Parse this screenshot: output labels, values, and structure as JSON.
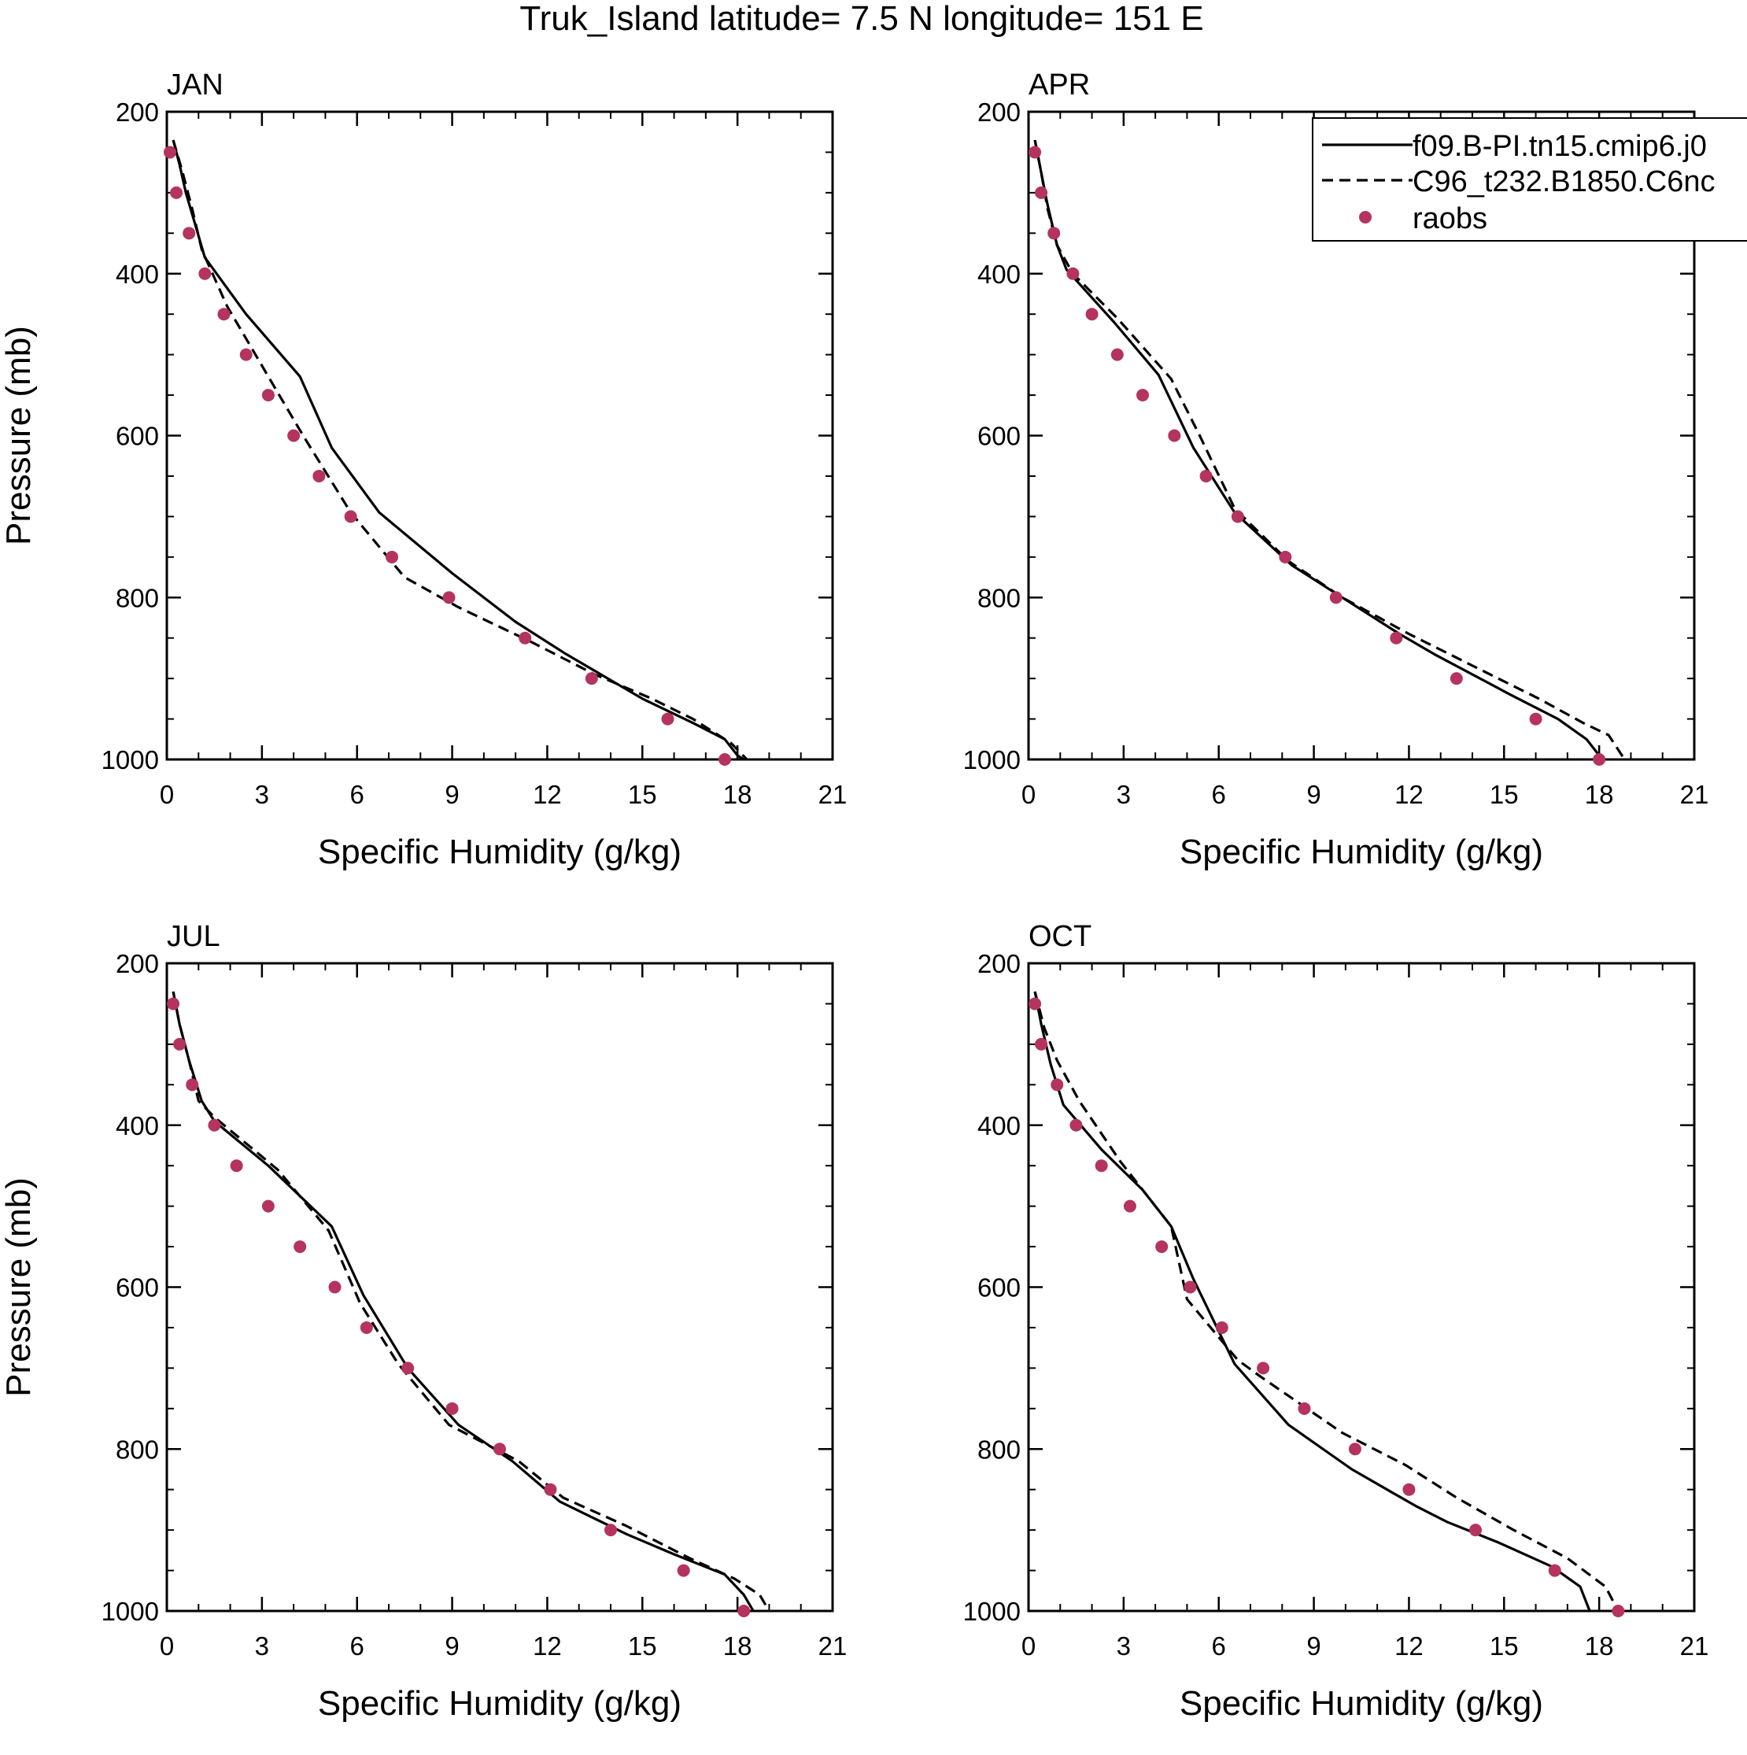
{
  "figure": {
    "title": "Truk_Island  latitude= 7.5 N longitude= 151 E",
    "obs_color": "#b5335f",
    "line_color": "#000000"
  },
  "legend": {
    "entries": [
      {
        "label": "f09.B-PI.tn15.cmip6.j0",
        "style": "solid"
      },
      {
        "label": "C96_t232.B1850.C6nc",
        "style": "dashed"
      },
      {
        "label": "raobs",
        "style": "marker"
      }
    ]
  },
  "chart_data": [
    {
      "type": "line",
      "title": "JAN",
      "xlabel": "Specific Humidity (g/kg)",
      "ylabel": "Pressure (mb)",
      "xlim": [
        0,
        21
      ],
      "ylim": [
        1000,
        200
      ],
      "xticks": [
        0,
        3,
        6,
        9,
        12,
        15,
        18,
        21
      ],
      "yticks": [
        200,
        400,
        600,
        800,
        1000
      ],
      "series": [
        {
          "name": "f09.B-PI.tn15.cmip6.j0",
          "style": "solid",
          "points": [
            [
              0.2,
              235
            ],
            [
              0.4,
              265
            ],
            [
              0.6,
              300
            ],
            [
              0.9,
              340
            ],
            [
              1.2,
              380
            ],
            [
              2.5,
              450
            ],
            [
              4.2,
              527
            ],
            [
              5.2,
              615
            ],
            [
              6.7,
              695
            ],
            [
              9.0,
              770
            ],
            [
              11.0,
              830
            ],
            [
              12.6,
              870
            ],
            [
              15.0,
              925
            ],
            [
              16.6,
              955
            ],
            [
              17.6,
              975
            ],
            [
              18.0,
              995
            ],
            [
              18.2,
              1000
            ]
          ]
        },
        {
          "name": "C96_t232.B1850.C6nc",
          "style": "dashed",
          "points": [
            [
              0.2,
              235
            ],
            [
              0.5,
              275
            ],
            [
              0.8,
              320
            ],
            [
              1.1,
              370
            ],
            [
              1.9,
              440
            ],
            [
              3.2,
              527
            ],
            [
              4.3,
              600
            ],
            [
              5.8,
              695
            ],
            [
              7.5,
              775
            ],
            [
              9.2,
              812
            ],
            [
              11.5,
              855
            ],
            [
              13.5,
              895
            ],
            [
              15.3,
              925
            ],
            [
              16.6,
              950
            ],
            [
              17.8,
              980
            ],
            [
              18.3,
              1000
            ]
          ]
        },
        {
          "name": "raobs",
          "style": "marker",
          "points": [
            [
              0.1,
              250
            ],
            [
              0.3,
              300
            ],
            [
              0.7,
              350
            ],
            [
              1.2,
              400
            ],
            [
              1.8,
              450
            ],
            [
              2.5,
              500
            ],
            [
              3.2,
              550
            ],
            [
              4.0,
              600
            ],
            [
              4.8,
              650
            ],
            [
              5.8,
              700
            ],
            [
              7.1,
              750
            ],
            [
              8.9,
              800
            ],
            [
              11.3,
              850
            ],
            [
              13.4,
              900
            ],
            [
              15.8,
              950
            ],
            [
              17.6,
              1000
            ]
          ]
        }
      ]
    },
    {
      "type": "line",
      "title": "APR",
      "xlabel": "Specific Humidity (g/kg)",
      "ylabel": "",
      "xlim": [
        0,
        21
      ],
      "ylim": [
        1000,
        200
      ],
      "xticks": [
        0,
        3,
        6,
        9,
        12,
        15,
        18,
        21
      ],
      "yticks": [
        200,
        400,
        600,
        800,
        1000
      ],
      "series": [
        {
          "name": "f09.B-PI.tn15.cmip6.j0",
          "style": "solid",
          "points": [
            [
              0.2,
              235
            ],
            [
              0.4,
              275
            ],
            [
              0.6,
              315
            ],
            [
              0.9,
              365
            ],
            [
              1.2,
              395
            ],
            [
              2.7,
              460
            ],
            [
              4.1,
              525
            ],
            [
              5.2,
              615
            ],
            [
              6.5,
              695
            ],
            [
              8.3,
              760
            ],
            [
              9.9,
              800
            ],
            [
              11.7,
              845
            ],
            [
              12.8,
              870
            ],
            [
              15.2,
              920
            ],
            [
              16.7,
              950
            ],
            [
              17.6,
              975
            ],
            [
              18.1,
              1000
            ]
          ]
        },
        {
          "name": "C96_t232.B1850.C6nc",
          "style": "dashed",
          "points": [
            [
              0.2,
              235
            ],
            [
              0.4,
              275
            ],
            [
              0.6,
              320
            ],
            [
              0.9,
              365
            ],
            [
              1.4,
              400
            ],
            [
              2.8,
              455
            ],
            [
              4.5,
              530
            ],
            [
              5.4,
              600
            ],
            [
              6.5,
              690
            ],
            [
              8.2,
              755
            ],
            [
              9.9,
              800
            ],
            [
              12.0,
              845
            ],
            [
              14.3,
              890
            ],
            [
              16.1,
              925
            ],
            [
              17.5,
              955
            ],
            [
              18.3,
              970
            ],
            [
              18.8,
              1000
            ]
          ]
        },
        {
          "name": "raobs",
          "style": "marker",
          "points": [
            [
              0.2,
              250
            ],
            [
              0.4,
              300
            ],
            [
              0.8,
              350
            ],
            [
              1.4,
              400
            ],
            [
              2.0,
              450
            ],
            [
              2.8,
              500
            ],
            [
              3.6,
              550
            ],
            [
              4.6,
              600
            ],
            [
              5.6,
              650
            ],
            [
              6.6,
              700
            ],
            [
              8.1,
              750
            ],
            [
              9.7,
              800
            ],
            [
              11.6,
              850
            ],
            [
              13.5,
              900
            ],
            [
              16.0,
              950
            ],
            [
              18.0,
              1000
            ]
          ]
        }
      ]
    },
    {
      "type": "line",
      "title": "JUL",
      "xlabel": "Specific Humidity (g/kg)",
      "ylabel": "Pressure (mb)",
      "xlim": [
        0,
        21
      ],
      "ylim": [
        1000,
        200
      ],
      "xticks": [
        0,
        3,
        6,
        9,
        12,
        15,
        18,
        21
      ],
      "yticks": [
        200,
        400,
        600,
        800,
        1000
      ],
      "series": [
        {
          "name": "f09.B-PI.tn15.cmip6.j0",
          "style": "solid",
          "points": [
            [
              0.2,
              235
            ],
            [
              0.4,
              275
            ],
            [
              0.7,
              320
            ],
            [
              1.1,
              370
            ],
            [
              1.5,
              395
            ],
            [
              3.2,
              450
            ],
            [
              5.2,
              525
            ],
            [
              6.2,
              610
            ],
            [
              7.6,
              700
            ],
            [
              9.2,
              770
            ],
            [
              10.9,
              815
            ],
            [
              12.4,
              865
            ],
            [
              14.5,
              905
            ],
            [
              16.0,
              930
            ],
            [
              17.6,
              955
            ],
            [
              18.2,
              980
            ],
            [
              18.5,
              1000
            ]
          ]
        },
        {
          "name": "C96_t232.B1850.C6nc",
          "style": "dashed",
          "points": [
            [
              0.2,
              235
            ],
            [
              0.4,
              275
            ],
            [
              0.7,
              320
            ],
            [
              1.0,
              370
            ],
            [
              1.5,
              390
            ],
            [
              3.5,
              455
            ],
            [
              5.1,
              530
            ],
            [
              6.1,
              620
            ],
            [
              7.3,
              695
            ],
            [
              8.9,
              770
            ],
            [
              11.1,
              815
            ],
            [
              12.5,
              860
            ],
            [
              14.5,
              895
            ],
            [
              16.5,
              935
            ],
            [
              17.9,
              960
            ],
            [
              18.7,
              980
            ],
            [
              19.0,
              1000
            ]
          ]
        },
        {
          "name": "raobs",
          "style": "marker",
          "points": [
            [
              0.2,
              250
            ],
            [
              0.4,
              300
            ],
            [
              0.8,
              350
            ],
            [
              1.5,
              400
            ],
            [
              2.2,
              450
            ],
            [
              3.2,
              500
            ],
            [
              4.2,
              550
            ],
            [
              5.3,
              600
            ],
            [
              6.3,
              650
            ],
            [
              7.6,
              700
            ],
            [
              9.0,
              750
            ],
            [
              10.5,
              800
            ],
            [
              12.1,
              850
            ],
            [
              14.0,
              900
            ],
            [
              16.3,
              950
            ],
            [
              18.2,
              1000
            ]
          ]
        }
      ]
    },
    {
      "type": "line",
      "title": "OCT",
      "xlabel": "Specific Humidity (g/kg)",
      "ylabel": "",
      "xlim": [
        0,
        21
      ],
      "ylim": [
        1000,
        200
      ],
      "xticks": [
        0,
        3,
        6,
        9,
        12,
        15,
        18,
        21
      ],
      "yticks": [
        200,
        400,
        600,
        800,
        1000
      ],
      "series": [
        {
          "name": "f09.B-PI.tn15.cmip6.j0",
          "style": "solid",
          "points": [
            [
              0.2,
              235
            ],
            [
              0.4,
              275
            ],
            [
              0.7,
              325
            ],
            [
              1.1,
              375
            ],
            [
              2.3,
              430
            ],
            [
              3.6,
              480
            ],
            [
              4.5,
              525
            ],
            [
              5.2,
              590
            ],
            [
              6.5,
              695
            ],
            [
              8.2,
              770
            ],
            [
              10.2,
              825
            ],
            [
              12.2,
              870
            ],
            [
              13.2,
              890
            ],
            [
              14.8,
              915
            ],
            [
              16.5,
              945
            ],
            [
              17.4,
              970
            ],
            [
              17.7,
              1000
            ]
          ]
        },
        {
          "name": "C96_t232.B1850.C6nc",
          "style": "dashed",
          "points": [
            [
              0.2,
              235
            ],
            [
              0.5,
              280
            ],
            [
              0.9,
              320
            ],
            [
              1.6,
              370
            ],
            [
              2.9,
              445
            ],
            [
              4.5,
              525
            ],
            [
              5.0,
              615
            ],
            [
              6.6,
              690
            ],
            [
              7.3,
              710
            ],
            [
              9.9,
              780
            ],
            [
              11.9,
              820
            ],
            [
              13.5,
              860
            ],
            [
              15.3,
              900
            ],
            [
              17.0,
              935
            ],
            [
              18.2,
              970
            ],
            [
              18.6,
              1000
            ]
          ]
        },
        {
          "name": "raobs",
          "style": "marker",
          "points": [
            [
              0.2,
              250
            ],
            [
              0.4,
              300
            ],
            [
              0.9,
              350
            ],
            [
              1.5,
              400
            ],
            [
              2.3,
              450
            ],
            [
              3.2,
              500
            ],
            [
              4.2,
              550
            ],
            [
              5.1,
              600
            ],
            [
              6.1,
              650
            ],
            [
              7.4,
              700
            ],
            [
              8.7,
              750
            ],
            [
              10.3,
              800
            ],
            [
              12.0,
              850
            ],
            [
              14.1,
              900
            ],
            [
              16.6,
              950
            ],
            [
              18.6,
              1000
            ]
          ]
        }
      ]
    }
  ]
}
